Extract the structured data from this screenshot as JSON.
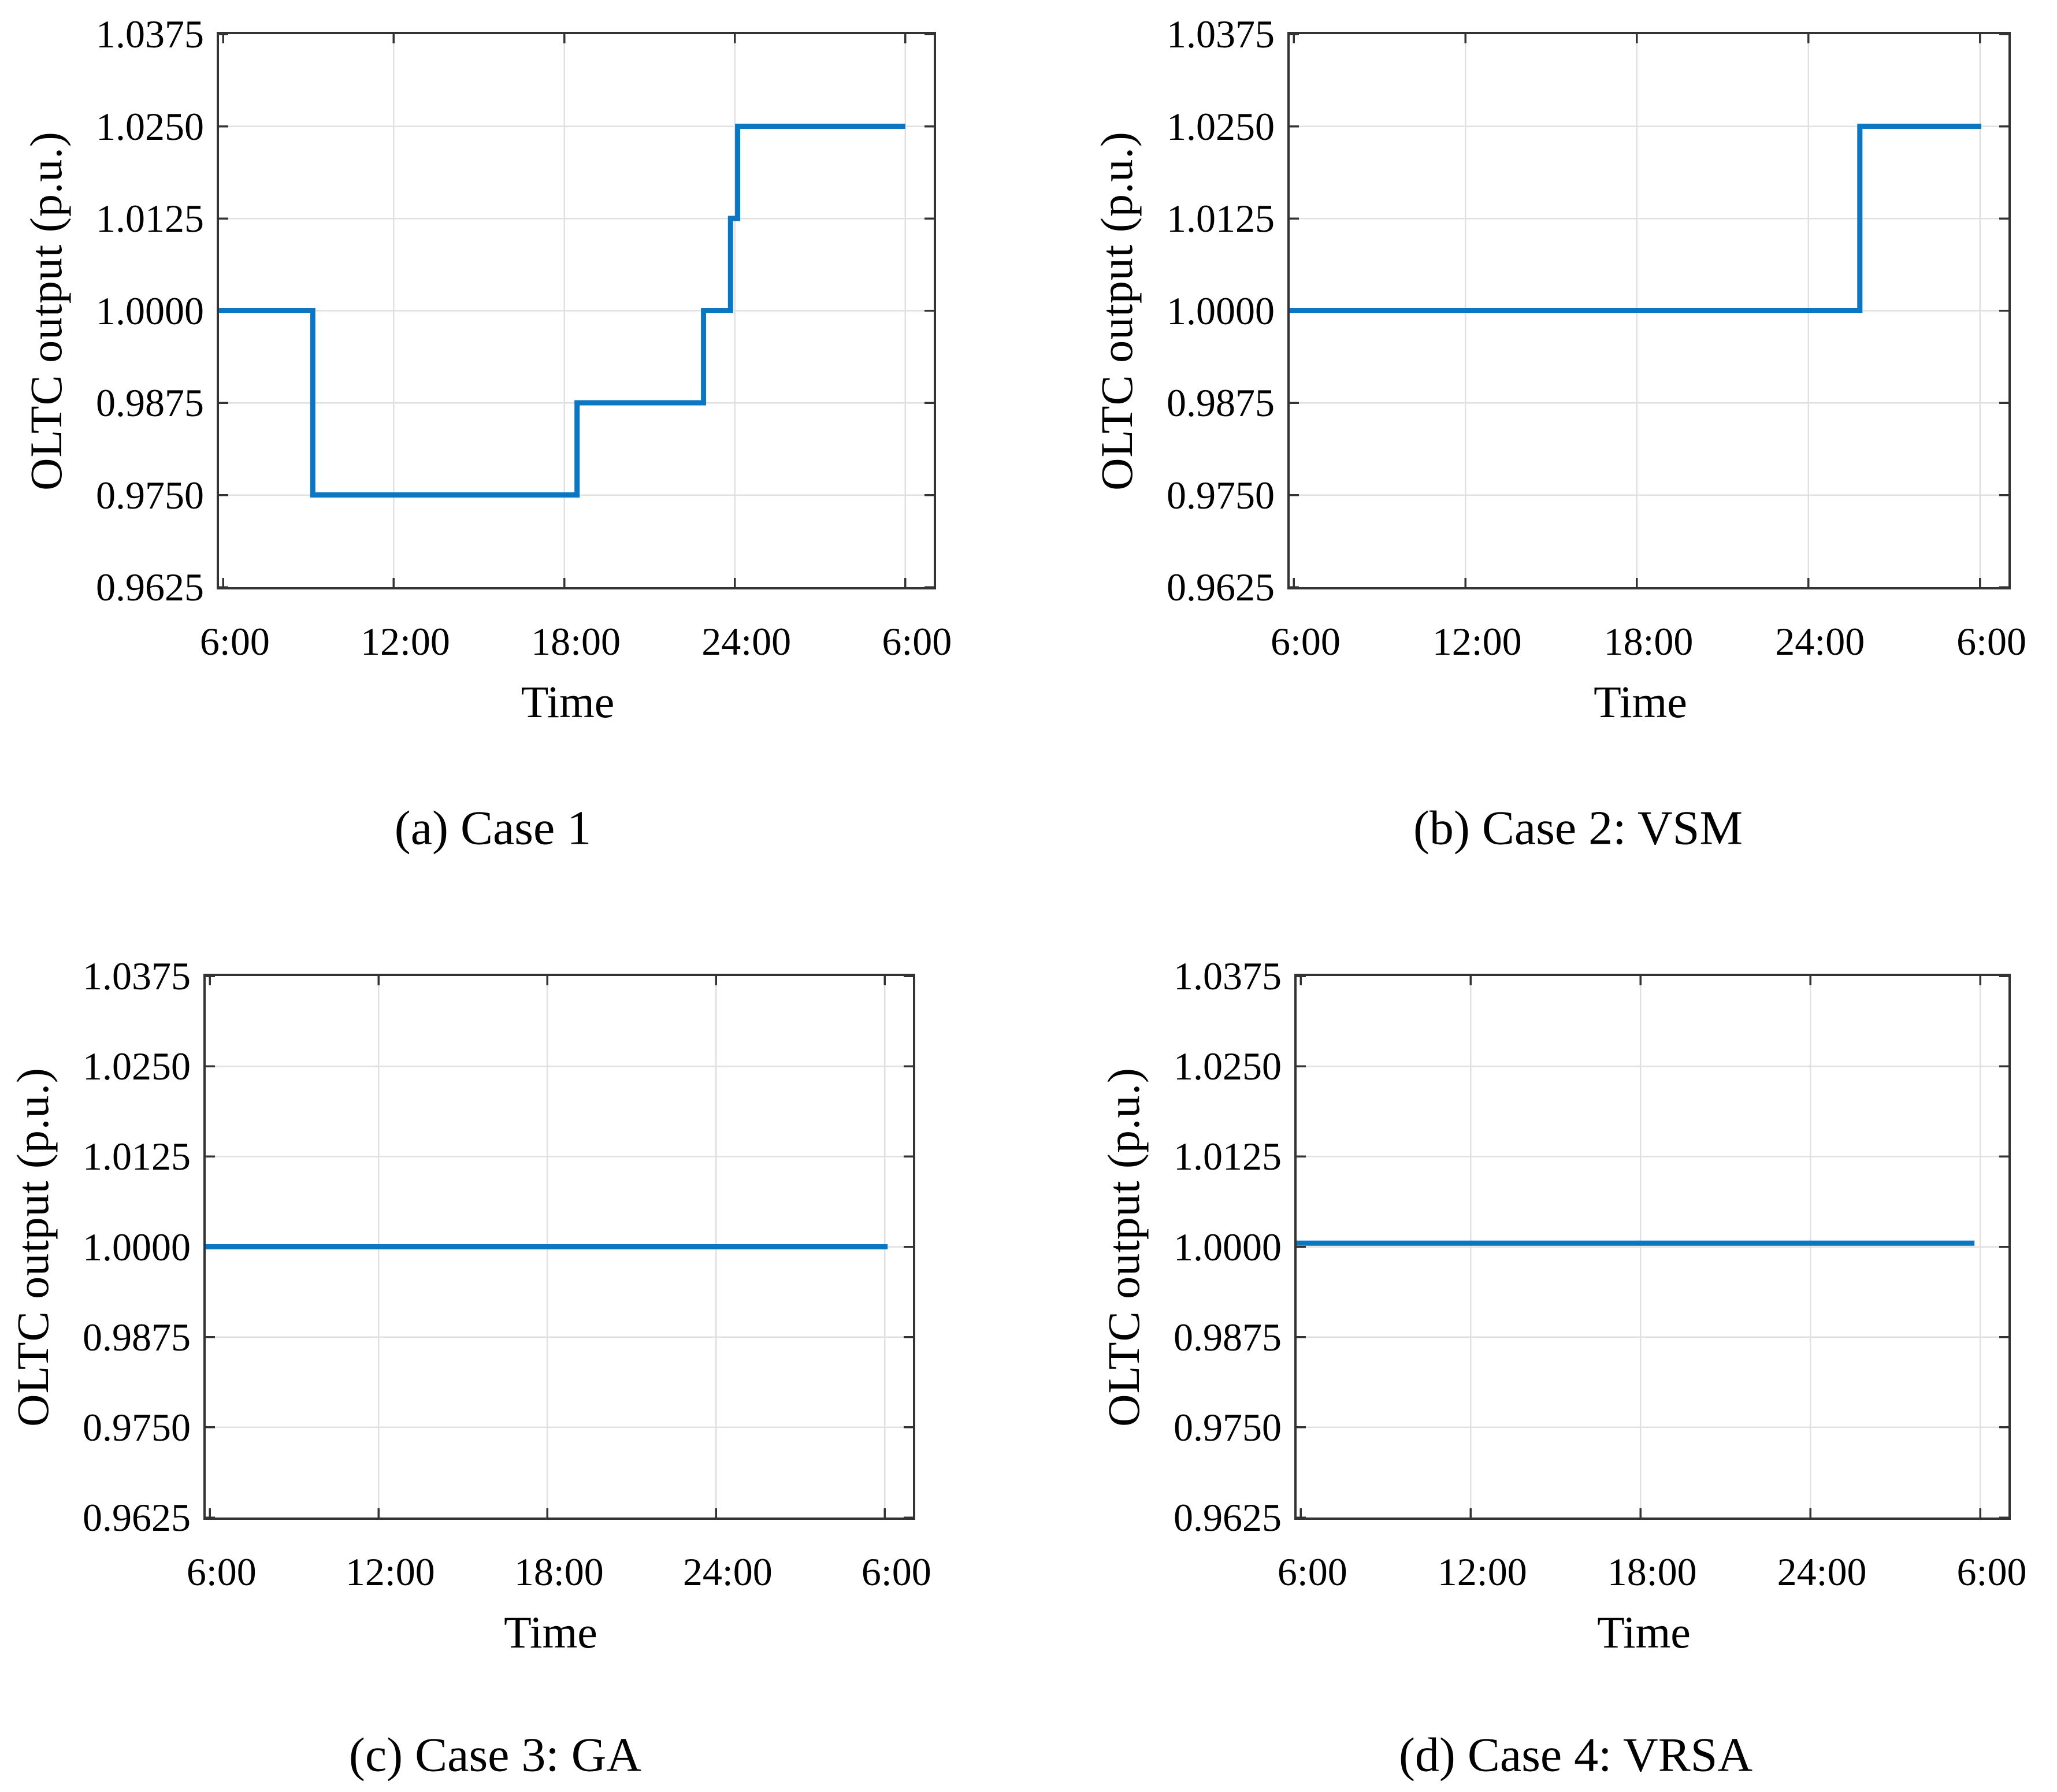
{
  "figure": {
    "background": "#ffffff",
    "series_color": "#0b76c1",
    "grid_color": "#e0e0e0",
    "axis_color": "#333333",
    "text_color": "#000000"
  },
  "chart_data": [
    {
      "type": "line",
      "step": true,
      "title": "(a) Case 1",
      "xlabel": "Time",
      "ylabel": "OLTC  output (p.u.)",
      "legend": null,
      "grid": true,
      "xlim_hours": [
        5.85,
        31.0
      ],
      "ylim": [
        0.9625,
        1.0375
      ],
      "x_ticks_hours": [
        6,
        12,
        18,
        24,
        30
      ],
      "x_tick_labels": [
        "6:00",
        "12:00",
        "18:00",
        "24:00",
        "6:00"
      ],
      "y_ticks": [
        0.9625,
        0.975,
        0.9875,
        1.0,
        1.0125,
        1.025,
        1.0375
      ],
      "y_tick_labels": [
        "0.9625",
        "0.9750",
        "0.9875",
        "1.0000",
        "1.0125",
        "1.0250",
        "1.0375"
      ],
      "points": [
        [
          5.85,
          1.0
        ],
        [
          9.15,
          1.0
        ],
        [
          9.15,
          0.975
        ],
        [
          18.45,
          0.975
        ],
        [
          18.45,
          0.9875
        ],
        [
          22.9,
          0.9875
        ],
        [
          22.9,
          1.0
        ],
        [
          23.85,
          1.0
        ],
        [
          23.85,
          1.0125
        ],
        [
          24.1,
          1.0125
        ],
        [
          24.1,
          1.025
        ],
        [
          30.0,
          1.025
        ]
      ]
    },
    {
      "type": "line",
      "step": true,
      "title": "(b) Case 2: VSM",
      "xlabel": "Time",
      "ylabel": "OLTC  output (p.u.)",
      "legend": null,
      "grid": true,
      "xlim_hours": [
        5.85,
        31.0
      ],
      "ylim": [
        0.9625,
        1.0375
      ],
      "x_ticks_hours": [
        6,
        12,
        18,
        24,
        30
      ],
      "x_tick_labels": [
        "6:00",
        "12:00",
        "18:00",
        "24:00",
        "6:00"
      ],
      "y_ticks": [
        0.9625,
        0.975,
        0.9875,
        1.0,
        1.0125,
        1.025,
        1.0375
      ],
      "y_tick_labels": [
        "0.9625",
        "0.9750",
        "0.9875",
        "1.0000",
        "1.0125",
        "1.0250",
        "1.0375"
      ],
      "points": [
        [
          5.85,
          1.0
        ],
        [
          25.8,
          1.0
        ],
        [
          25.8,
          1.025
        ],
        [
          30.05,
          1.025
        ]
      ]
    },
    {
      "type": "line",
      "step": true,
      "title": "(c) Case 3: GA",
      "xlabel": "Time",
      "ylabel": "OLTC  output (p.u.)",
      "legend": null,
      "grid": true,
      "xlim_hours": [
        5.85,
        31.0
      ],
      "ylim": [
        0.9625,
        1.0375
      ],
      "x_ticks_hours": [
        6,
        12,
        18,
        24,
        30
      ],
      "x_tick_labels": [
        "6:00",
        "12:00",
        "18:00",
        "24:00",
        "6:00"
      ],
      "y_ticks": [
        0.9625,
        0.975,
        0.9875,
        1.0,
        1.0125,
        1.025,
        1.0375
      ],
      "y_tick_labels": [
        "0.9625",
        "0.9750",
        "0.9875",
        "1.0000",
        "1.0125",
        "1.0250",
        "1.0375"
      ],
      "points": [
        [
          5.85,
          1.0
        ],
        [
          30.1,
          1.0
        ]
      ]
    },
    {
      "type": "line",
      "step": true,
      "title": "(d) Case 4: VRSA",
      "xlabel": "Time",
      "ylabel": "OLTC  output (p.u.)",
      "legend": null,
      "grid": true,
      "xlim_hours": [
        5.85,
        31.0
      ],
      "ylim": [
        0.9625,
        1.0375
      ],
      "x_ticks_hours": [
        6,
        12,
        18,
        24,
        30
      ],
      "x_tick_labels": [
        "6:00",
        "12:00",
        "18:00",
        "24:00",
        "6:00"
      ],
      "y_ticks": [
        0.9625,
        0.975,
        0.9875,
        1.0,
        1.0125,
        1.025,
        1.0375
      ],
      "y_tick_labels": [
        "0.9625",
        "0.9750",
        "0.9875",
        "1.0000",
        "1.0125",
        "1.0250",
        "1.0375"
      ],
      "points": [
        [
          5.85,
          1.0005
        ],
        [
          29.8,
          1.0005
        ]
      ]
    }
  ]
}
